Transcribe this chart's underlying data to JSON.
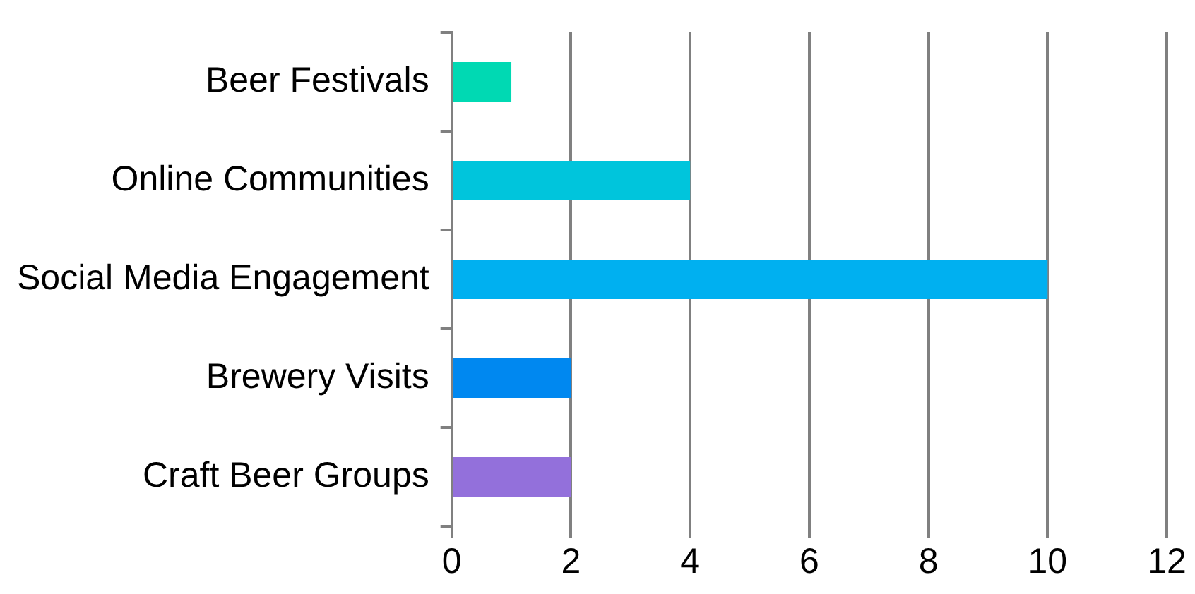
{
  "chart_data": {
    "type": "bar",
    "orientation": "horizontal",
    "categories": [
      "Beer Festivals",
      "Online Communities",
      "Social Media Engagement",
      "Brewery Visits",
      "Craft Beer Groups"
    ],
    "values": [
      1,
      4,
      10,
      2,
      2
    ],
    "colors": [
      "#00d9b3",
      "#00c5dc",
      "#00b0f0",
      "#0088f0",
      "#9370db"
    ],
    "xlim": [
      0,
      12
    ],
    "xticks": [
      0,
      2,
      4,
      6,
      8,
      10,
      12
    ],
    "grid": "x",
    "legend": false
  }
}
